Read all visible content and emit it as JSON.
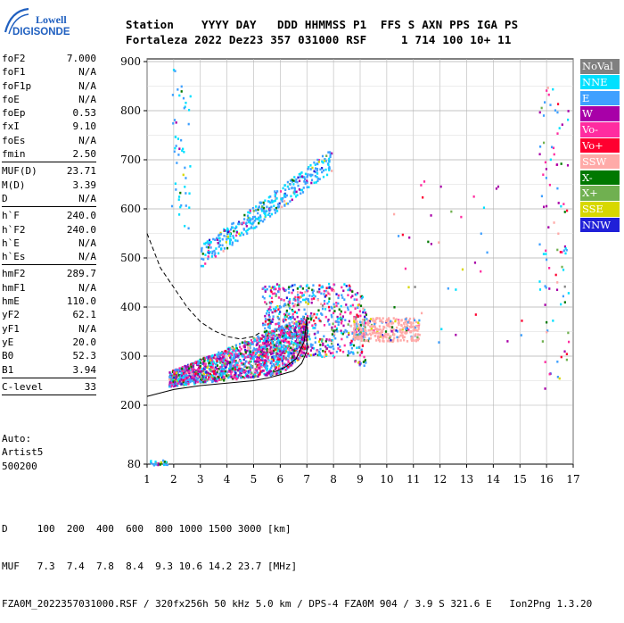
{
  "logo": {
    "line1": "Lowell",
    "line2": "DIGISONDE"
  },
  "header": {
    "line1": "Station    YYYY DAY   DDD HHMMSS P1  FFS S AXN PPS IGA PS",
    "line2": "Fortaleza 2022 Dez23 357 031000 RSF     1 714 100 10+ 11"
  },
  "params": [
    [
      {
        "k": "foF2",
        "v": "7.000"
      },
      {
        "k": "foF1",
        "v": "N/A"
      },
      {
        "k": "foF1p",
        "v": "N/A"
      },
      {
        "k": "foE",
        "v": "N/A"
      },
      {
        "k": "foEp",
        "v": "0.53"
      },
      {
        "k": "fxI",
        "v": "9.10"
      },
      {
        "k": "foEs",
        "v": "N/A"
      },
      {
        "k": "fmin",
        "v": "2.50"
      }
    ],
    [
      {
        "k": "MUF(D)",
        "v": "23.71"
      },
      {
        "k": "M(D)",
        "v": "3.39"
      },
      {
        "k": "D",
        "v": "N/A"
      }
    ],
    [
      {
        "k": "h`F",
        "v": "240.0"
      },
      {
        "k": "h`F2",
        "v": "240.0"
      },
      {
        "k": "h`E",
        "v": "N/A"
      },
      {
        "k": "h`Es",
        "v": "N/A"
      }
    ],
    [
      {
        "k": "hmF2",
        "v": "289.7"
      },
      {
        "k": "hmF1",
        "v": "N/A"
      },
      {
        "k": "hmE",
        "v": "110.0"
      },
      {
        "k": "yF2",
        "v": "62.1"
      },
      {
        "k": "yF1",
        "v": "N/A"
      },
      {
        "k": "yE",
        "v": "20.0"
      },
      {
        "k": "B0",
        "v": "52.3"
      },
      {
        "k": "B1",
        "v": "3.94"
      }
    ],
    [
      {
        "k": "C-level",
        "v": "33"
      }
    ]
  ],
  "auto": {
    "line1": "Auto:",
    "line2": "Artist5",
    "line3": "500200"
  },
  "footer": {
    "line1": "D     100  200  400  600  800 1000 1500 3000 [km]",
    "line2": "MUF   7.3  7.4  7.8  8.4  9.3 10.6 14.2 23.7 [MHz]",
    "line3": "FZA0M_2022357031000.RSF / 320fx256h 50 kHz 5.0 km / DPS-4 FZA0M 904 / 3.9 S 321.6 E   Ion2Png 1.3.20"
  },
  "legend": [
    {
      "label": "NoVal",
      "color": "#808080"
    },
    {
      "label": "NNE",
      "color": "#00e0ff"
    },
    {
      "label": "E",
      "color": "#3fa0ff"
    },
    {
      "label": "W",
      "color": "#a800a8"
    },
    {
      "label": "Vo-",
      "color": "#ff2ca0"
    },
    {
      "label": "Vo+",
      "color": "#ff0030"
    },
    {
      "label": "SSW",
      "color": "#ffaaa8"
    },
    {
      "label": "X-",
      "color": "#007800"
    },
    {
      "label": "X+",
      "color": "#70b050"
    },
    {
      "label": "SSE",
      "color": "#d8d800"
    },
    {
      "label": "NNW",
      "color": "#2020d8"
    }
  ],
  "chart_data": {
    "type": "scatter",
    "xlim": [
      1,
      17
    ],
    "ylim": [
      80,
      900
    ],
    "x_ticks": [
      1,
      2,
      3,
      4,
      5,
      6,
      7,
      8,
      9,
      10,
      11,
      12,
      13,
      14,
      15,
      16,
      17
    ],
    "y_ticks": [
      80,
      200,
      300,
      400,
      500,
      600,
      700,
      800,
      900
    ],
    "grid": true,
    "legend_placement": "right",
    "trace_solid_profile": [
      [
        1.0,
        218
      ],
      [
        2.0,
        232
      ],
      [
        3.0,
        240
      ],
      [
        4.0,
        245
      ],
      [
        5.0,
        250
      ],
      [
        5.5,
        255
      ],
      [
        6.0,
        262
      ],
      [
        6.5,
        270
      ],
      [
        6.8,
        285
      ],
      [
        7.0,
        310
      ],
      [
        7.0,
        380
      ]
    ],
    "trace_solid_upper": [
      [
        5.8,
        268
      ],
      [
        6.2,
        278
      ],
      [
        6.6,
        295
      ],
      [
        6.9,
        330
      ],
      [
        7.0,
        380
      ]
    ],
    "trace_dashed_muf": [
      [
        1.0,
        550
      ],
      [
        1.5,
        480
      ],
      [
        2.0,
        440
      ],
      [
        2.5,
        400
      ],
      [
        3.0,
        370
      ],
      [
        3.5,
        352
      ],
      [
        4.0,
        340
      ],
      [
        4.5,
        335
      ],
      [
        5.0,
        340
      ],
      [
        5.3,
        350
      ]
    ],
    "echo_regions": [
      {
        "name": "F2 trace",
        "x": [
          1.8,
          7.0
        ],
        "y": [
          240,
          390
        ]
      },
      {
        "name": "F2 upper",
        "x": [
          5.5,
          9.2
        ],
        "y": [
          300,
          460
        ]
      },
      {
        "name": "second hop",
        "x": [
          3.0,
          8.0
        ],
        "y": [
          500,
          730
        ]
      },
      {
        "name": "spread",
        "x": [
          8.8,
          11.2
        ],
        "y": [
          330,
          380
        ]
      }
    ]
  }
}
